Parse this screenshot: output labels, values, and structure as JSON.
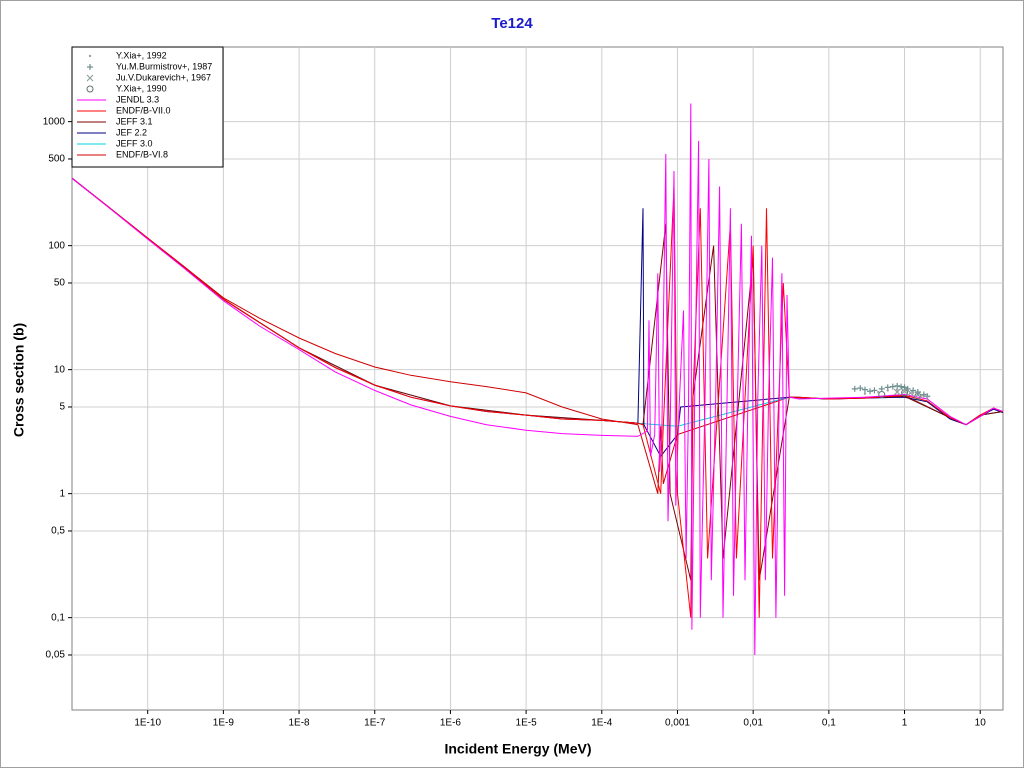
{
  "chart_data": {
    "type": "line",
    "title": "Te124",
    "x_label": "Incident Energy (MeV)",
    "y_label": "Cross section (b)",
    "log_x": true,
    "log_y": true,
    "grid": true,
    "legend": "top-left",
    "xlim": [
      1e-11,
      20
    ],
    "ylim": [
      0.018,
      4000
    ],
    "xticks": [
      {
        "value": 1e-10,
        "label": "1E-10"
      },
      {
        "value": 1e-09,
        "label": "1E-9"
      },
      {
        "value": 1e-08,
        "label": "1E-8"
      },
      {
        "value": 1e-07,
        "label": "1E-7"
      },
      {
        "value": 1e-06,
        "label": "1E-6"
      },
      {
        "value": 1e-05,
        "label": "1E-5"
      },
      {
        "value": 0.0001,
        "label": "1E-4"
      },
      {
        "value": 0.001,
        "label": "0,001"
      },
      {
        "value": 0.01,
        "label": "0,01"
      },
      {
        "value": 0.1,
        "label": "0,1"
      },
      1,
      10
    ],
    "yticks": [
      {
        "value": 0.05,
        "label": "0,05"
      },
      {
        "value": 0.1,
        "label": "0,1"
      },
      {
        "value": 0.5,
        "label": "0,5"
      },
      1,
      5,
      10,
      50,
      100,
      500,
      1000
    ],
    "series": [
      {
        "name": "Y.Xia+, 1992",
        "type": "scatter",
        "marker": "dot",
        "color": "#a0a0a0",
        "x": [
          0.3,
          0.45,
          0.6,
          0.8,
          1.0,
          1.3,
          1.7,
          2.0
        ],
        "values": [
          6.4,
          6.6,
          6.8,
          6.9,
          6.8,
          6.5,
          6.2,
          6.0
        ]
      },
      {
        "name": "Yu.M.Burmistrov+, 1987",
        "type": "scatter",
        "marker": "plus",
        "color": "#6f8f8f",
        "x": [
          0.22,
          0.26,
          0.3,
          0.35,
          0.4,
          0.5,
          0.6,
          0.7,
          0.8,
          0.9,
          1.0,
          1.1,
          1.3,
          1.5,
          1.8,
          2.0
        ],
        "values": [
          7.0,
          7.1,
          6.9,
          6.7,
          6.8,
          7.0,
          7.2,
          7.3,
          7.4,
          7.3,
          7.2,
          7.0,
          6.8,
          6.6,
          6.3,
          6.1
        ]
      },
      {
        "name": "Ju.V.Dukarevich+, 1967",
        "type": "scatter",
        "marker": "x",
        "color": "#8fa0a0",
        "x": [
          0.8,
          1.0,
          1.2,
          1.5
        ],
        "values": [
          6.6,
          6.7,
          6.5,
          6.3
        ]
      },
      {
        "name": "Y.Xia+, 1990",
        "type": "scatter",
        "marker": "circle",
        "color": "#607070",
        "x": [
          0.5,
          1.0,
          1.5
        ],
        "values": [
          6.3,
          6.5,
          6.1
        ]
      },
      {
        "name": "JENDL 3.3",
        "type": "line",
        "color": "#ff00ff",
        "x": [
          1e-11,
          3e-11,
          1e-10,
          3e-10,
          1e-09,
          3e-09,
          1e-08,
          3e-08,
          1e-07,
          3e-07,
          1e-06,
          3e-06,
          1e-05,
          3e-05,
          0.0001,
          0.0003,
          0.0004,
          0.00042,
          0.00044,
          0.0005,
          0.00055,
          0.00058,
          0.00062,
          0.0007,
          0.00075,
          0.0008,
          0.0009,
          0.00095,
          0.00105,
          0.0012,
          0.0013,
          0.0014,
          0.0015,
          0.00155,
          0.0017,
          0.0019,
          0.002,
          0.0023,
          0.0026,
          0.0028,
          0.0032,
          0.0036,
          0.004,
          0.0045,
          0.005,
          0.0055,
          0.0062,
          0.007,
          0.0078,
          0.0085,
          0.0095,
          0.0105,
          0.0115,
          0.013,
          0.0145,
          0.016,
          0.018,
          0.02,
          0.022,
          0.024,
          0.026,
          0.028,
          0.03,
          0.04,
          0.1,
          0.3,
          1,
          2,
          4,
          6.5,
          10,
          15,
          20
        ],
        "values": [
          350,
          205,
          113,
          66,
          36,
          22.5,
          14.5,
          9.6,
          6.8,
          5.2,
          4.2,
          3.6,
          3.25,
          3.05,
          2.95,
          2.9,
          3.2,
          25,
          2,
          3,
          60,
          1.5,
          3,
          550,
          0.6,
          3,
          400,
          0.8,
          5,
          30,
          0.3,
          5,
          1400,
          0.08,
          8,
          700,
          0.1,
          5,
          500,
          0.2,
          6,
          300,
          0.1,
          5,
          200,
          0.15,
          6,
          150,
          0.2,
          5,
          120,
          0.05,
          6,
          100,
          0.2,
          6,
          80,
          0.1,
          5,
          60,
          0.15,
          40,
          6,
          5.8,
          5.9,
          6,
          6.3,
          5.8,
          4.2,
          3.6,
          4.2,
          4.9,
          4.6
        ]
      },
      {
        "name": "ENDF/B-VII.0",
        "type": "line",
        "color": "#ff0000",
        "x": [
          1e-11,
          3e-11,
          1e-10,
          3e-10,
          1e-09,
          3e-09,
          1e-08,
          3e-08,
          1e-07,
          3e-07,
          1e-06,
          3e-06,
          1e-05,
          3e-05,
          0.0001,
          0.0003,
          0.00035,
          0.0006,
          0.00065,
          0.0009,
          0.001,
          0.0015,
          0.0016,
          0.002,
          0.0025,
          0.005,
          0.006,
          0.01,
          0.012,
          0.015,
          0.018,
          0.025,
          0.03,
          0.04,
          0.1,
          0.3,
          1,
          2,
          4,
          6.5,
          10,
          15,
          20
        ],
        "values": [
          350,
          206,
          115,
          68,
          37,
          24,
          15,
          10.4,
          7.5,
          6.0,
          5.1,
          4.6,
          4.3,
          4.0,
          3.9,
          3.7,
          3.6,
          1,
          3.5,
          300,
          1,
          0.1,
          6,
          200,
          0.3,
          150,
          0.3,
          100,
          0.1,
          200,
          0.3,
          50,
          6,
          6,
          5.8,
          5.9,
          6.2,
          5.6,
          4.1,
          3.6,
          4.3,
          4.9,
          4.6
        ]
      },
      {
        "name": "JEFF 3.1",
        "type": "line",
        "color": "#800000",
        "x": [
          1e-11,
          1e-10,
          1e-09,
          1e-08,
          1e-07,
          1e-06,
          1e-05,
          0.0001,
          0.0003,
          0.00035,
          0.0007,
          0.0008,
          0.0015,
          0.0016,
          0.003,
          0.004,
          0.01,
          0.012,
          0.03,
          0.1,
          1,
          4,
          6.5,
          10,
          20
        ],
        "values": [
          350,
          115,
          37,
          15,
          7.5,
          5.1,
          4.3,
          3.9,
          3.7,
          3.6,
          150,
          1,
          0.2,
          6,
          100,
          0.3,
          80,
          0.2,
          6,
          5.8,
          6.1,
          4.1,
          3.6,
          4.3,
          4.6
        ]
      },
      {
        "name": "JEF 2.2",
        "type": "line",
        "color": "#000080",
        "x": [
          1e-11,
          3e-11,
          1e-10,
          3e-10,
          1e-09,
          3e-09,
          1e-08,
          3e-08,
          1e-07,
          3e-07,
          1e-06,
          3e-06,
          1e-05,
          3e-05,
          0.0001,
          0.0003,
          0.00035,
          0.00036,
          0.0006,
          0.001,
          0.0011,
          0.03,
          0.04,
          0.1,
          0.3,
          1,
          2,
          4,
          6.5,
          10,
          15,
          20
        ],
        "values": [
          350,
          206,
          115,
          68,
          37,
          24,
          15,
          10.4,
          7.5,
          6.0,
          5.1,
          4.6,
          4.3,
          4.0,
          3.9,
          3.7,
          200,
          3.6,
          2,
          3,
          5,
          6,
          6,
          5.8,
          5.9,
          6.0,
          5.5,
          4.0,
          3.6,
          4.2,
          4.8,
          4.5
        ]
      },
      {
        "name": "JEFF 3.0",
        "type": "line",
        "color": "#00d0e0",
        "x": [
          1e-11,
          1e-10,
          1e-09,
          1e-08,
          1e-07,
          1e-06,
          1e-05,
          0.0001,
          0.0003,
          0.001,
          0.03,
          0.1,
          1,
          4,
          6.5,
          10,
          20
        ],
        "values": [
          350,
          115,
          37,
          15,
          7.5,
          5.1,
          4.3,
          3.9,
          3.7,
          3.5,
          6,
          5.8,
          6.1,
          4.1,
          3.6,
          4.3,
          4.6
        ]
      },
      {
        "name": "ENDF/B-VI.8",
        "type": "line",
        "color": "#d00000",
        "x": [
          1e-11,
          3e-11,
          1e-10,
          3e-10,
          1e-09,
          3e-09,
          1e-08,
          3e-08,
          1e-07,
          3e-07,
          1e-06,
          3e-06,
          1e-05,
          3e-05,
          0.0001,
          0.0003,
          0.00055,
          0.0006,
          0.00065,
          0.001,
          0.03,
          0.1,
          1,
          4,
          6.5,
          10,
          20
        ],
        "values": [
          350,
          206,
          115,
          68,
          38,
          26,
          18,
          13.5,
          10.5,
          9,
          8,
          7.3,
          6.5,
          5,
          4,
          3.6,
          1,
          3.5,
          1.2,
          3,
          6,
          5.8,
          6.2,
          4.1,
          3.6,
          4.3,
          4.6
        ]
      }
    ]
  }
}
